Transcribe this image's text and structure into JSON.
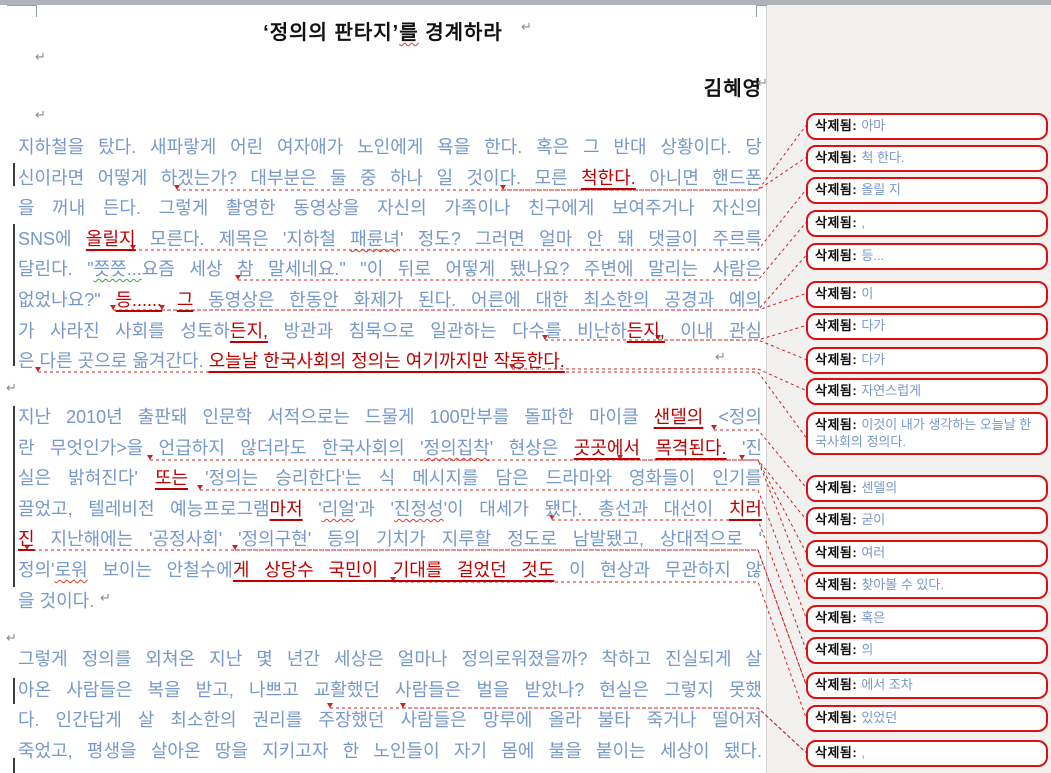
{
  "document": {
    "title_segments": [
      {
        "text": "‘정의의 판타지’",
        "style": "body"
      },
      {
        "text": "를",
        "style": "sp"
      },
      {
        "text": " 경계하라",
        "style": "body"
      }
    ],
    "title_plain": "‘정의의 판타지’를 경계하라",
    "author": "김혜영",
    "paragraphs": [
      {
        "lines": [
          {
            "justify": true,
            "segments": [
              {
                "text": "지하철을 탔다. 새파랗게 어린 여자애가 노인에게 욕을 한다. 혹은 그 반대 상황이다. 당",
                "style": "body"
              }
            ]
          },
          {
            "justify": true,
            "segments": [
              {
                "text": "신이라면 어떻게 하겠는가? 대부분은 둘 중 하나 일 것이다. 모른 ",
                "style": "body"
              },
              {
                "text": "척한다.",
                "style": "ins"
              },
              {
                "text": " 아니면 핸드폰",
                "style": "body"
              }
            ]
          },
          {
            "justify": true,
            "segments": [
              {
                "text": "을 꺼내 든다. 그렇게 촬영한 동영상을 자신의 가족이나 친구에게 보여주거나 자신의",
                "style": "body"
              }
            ]
          },
          {
            "justify": true,
            "segments": [
              {
                "text": "SNS에 ",
                "style": "body"
              },
              {
                "text": "올릴지",
                "style": "ins"
              },
              {
                "text": " 모른다. 제목은 '지하철 ",
                "style": "body"
              },
              {
                "text": "패륜녀",
                "style": "sp"
              },
              {
                "text": "' 정도? 그러면 얼마 안 돼 댓글이 주르륵",
                "style": "body"
              }
            ]
          },
          {
            "justify": true,
            "segments": [
              {
                "text": "달린다. \"",
                "style": "body"
              },
              {
                "text": "쯧쯧...",
                "style": "spg"
              },
              {
                "text": "요즘 세상 참 말세네요.\" \"이 뒤로 어떻게 됐나요? 주변에 말리는 사람은",
                "style": "body"
              }
            ]
          },
          {
            "justify": true,
            "segments": [
              {
                "text": "없었나요?\" ",
                "style": "body"
              },
              {
                "text": "등......",
                "style": "ins"
              },
              {
                "text": " ",
                "style": "body"
              },
              {
                "text": "그",
                "style": "ins"
              },
              {
                "text": " 동영상은 한동안 화제가 된다. 어른에 대한 최소한의 공경과 예의",
                "style": "body"
              }
            ]
          },
          {
            "justify": true,
            "segments": [
              {
                "text": "가 사라진 사회를 성토하",
                "style": "body"
              },
              {
                "text": "든지,",
                "style": "ins"
              },
              {
                "text": " 방관과 침묵으로 일관하는 다수를 비난하",
                "style": "body"
              },
              {
                "text": "든지,",
                "style": "ins"
              },
              {
                "text": " 이내 관심",
                "style": "body"
              }
            ]
          },
          {
            "justify": false,
            "segments": [
              {
                "text": "은 다른 곳으로 옮겨간다. ",
                "style": "body"
              },
              {
                "text": "오늘날 한국사회의 정의는 여기까지만 작동한다.",
                "style": "ins"
              }
            ]
          }
        ]
      },
      {
        "lines": [
          {
            "justify": true,
            "segments": [
              {
                "text": "지난 2010년 출판돼 인문학 서적으로는 드물게 100만부를 돌파한 마이클 ",
                "style": "body"
              },
              {
                "text": "샌델의",
                "style": "ins"
              },
              {
                "text": " <정의",
                "style": "body"
              }
            ]
          },
          {
            "justify": true,
            "segments": [
              {
                "text": "란 무엇인가>을 언급하지 않더라도 한국사회의 '",
                "style": "body"
              },
              {
                "text": "정의집착",
                "style": "sp"
              },
              {
                "text": "' 현상은 ",
                "style": "body"
              },
              {
                "text": "곳곳에서",
                "style": "ins"
              },
              {
                "text": " ",
                "style": "body"
              },
              {
                "text": "목격된다.",
                "style": "ins"
              },
              {
                "text": " '진",
                "style": "body"
              }
            ]
          },
          {
            "justify": true,
            "segments": [
              {
                "text": "실은 밝혀진다' ",
                "style": "body"
              },
              {
                "text": "또는",
                "style": "ins"
              },
              {
                "text": " '정의는 승리한다'는 식 메시지를 담은 드라마와 영화들이 인기를",
                "style": "body"
              }
            ]
          },
          {
            "justify": true,
            "segments": [
              {
                "text": "끌었고, 텔레비전 예능프로그램",
                "style": "body"
              },
              {
                "text": "마저",
                "style": "ins"
              },
              {
                "text": " '",
                "style": "body"
              },
              {
                "text": "리얼",
                "style": "sp"
              },
              {
                "text": "'과 '",
                "style": "body"
              },
              {
                "text": "진정성",
                "style": "sp"
              },
              {
                "text": "'이 대세가 됐다. 총선과 대선이 ",
                "style": "body"
              },
              {
                "text": "치러",
                "style": "ins"
              }
            ]
          },
          {
            "justify": true,
            "segments": [
              {
                "text": "진",
                "style": "ins"
              },
              {
                "text": " 지난해에는 '공정사회' '정의구현' 등의 기치가 지루할 정도로 남발됐고, 상대적으로 '",
                "style": "body"
              }
            ]
          },
          {
            "justify": true,
            "segments": [
              {
                "text": "정의'",
                "style": "body"
              },
              {
                "text": "로워",
                "style": "sp"
              },
              {
                "text": " 보이는 안철수에",
                "style": "body"
              },
              {
                "text": "게 상당수 국민이 기대를 걸었던 것도",
                "style": "ins"
              },
              {
                "text": " 이 현상과 무관하지 않",
                "style": "body"
              }
            ]
          },
          {
            "justify": false,
            "segments": [
              {
                "text": "을 것이다.",
                "style": "body"
              }
            ]
          }
        ]
      },
      {
        "lines": [
          {
            "justify": true,
            "segments": [
              {
                "text": "그렇게 정의를 외쳐온 지난 몇 년간 세상은 얼마나 정의로워졌을까? 착하고 진실되게 살",
                "style": "body"
              }
            ]
          },
          {
            "justify": true,
            "segments": [
              {
                "text": "아온 사람들은 복을 받고, 나쁘고 교활했던 사람들은 벌을 받았나? 현실은 그렇지 못했",
                "style": "body"
              }
            ]
          },
          {
            "justify": true,
            "segments": [
              {
                "text": "다. 인간답게 살 최소한의 권리를 주장했던 사람들은 망루에 올라 불타 죽거나 떨어져",
                "style": "body"
              }
            ]
          },
          {
            "justify": true,
            "segments": [
              {
                "text": "죽었고, 평생을 살아온 땅을 지키고자 한 노인들이 자기 몸에 불을 붙이는 세상이 됐다.",
                "style": "body"
              }
            ]
          }
        ]
      }
    ]
  },
  "balloons": {
    "label": "삭제됨:",
    "items": [
      "아마",
      "척 한다.",
      "올릴 지",
      ",",
      "등...",
      "이",
      "다가",
      "다가",
      "자연스럽게",
      "이것이 내가 생각하는 오늘날 한국사회의 정의다.",
      "센델의",
      "굳이",
      "여러",
      "찾아볼 수 있다.",
      "혹은",
      "의",
      "에서 조차",
      "있었던",
      ","
    ]
  },
  "marks": {
    "pilcrow": "↵"
  },
  "colors": {
    "body_text": "#7698cb",
    "insertion_red": "#c00000",
    "balloon_border": "#dd0f0f",
    "connector_red": "#cc2222",
    "change_bar": "#3c3c3c"
  }
}
